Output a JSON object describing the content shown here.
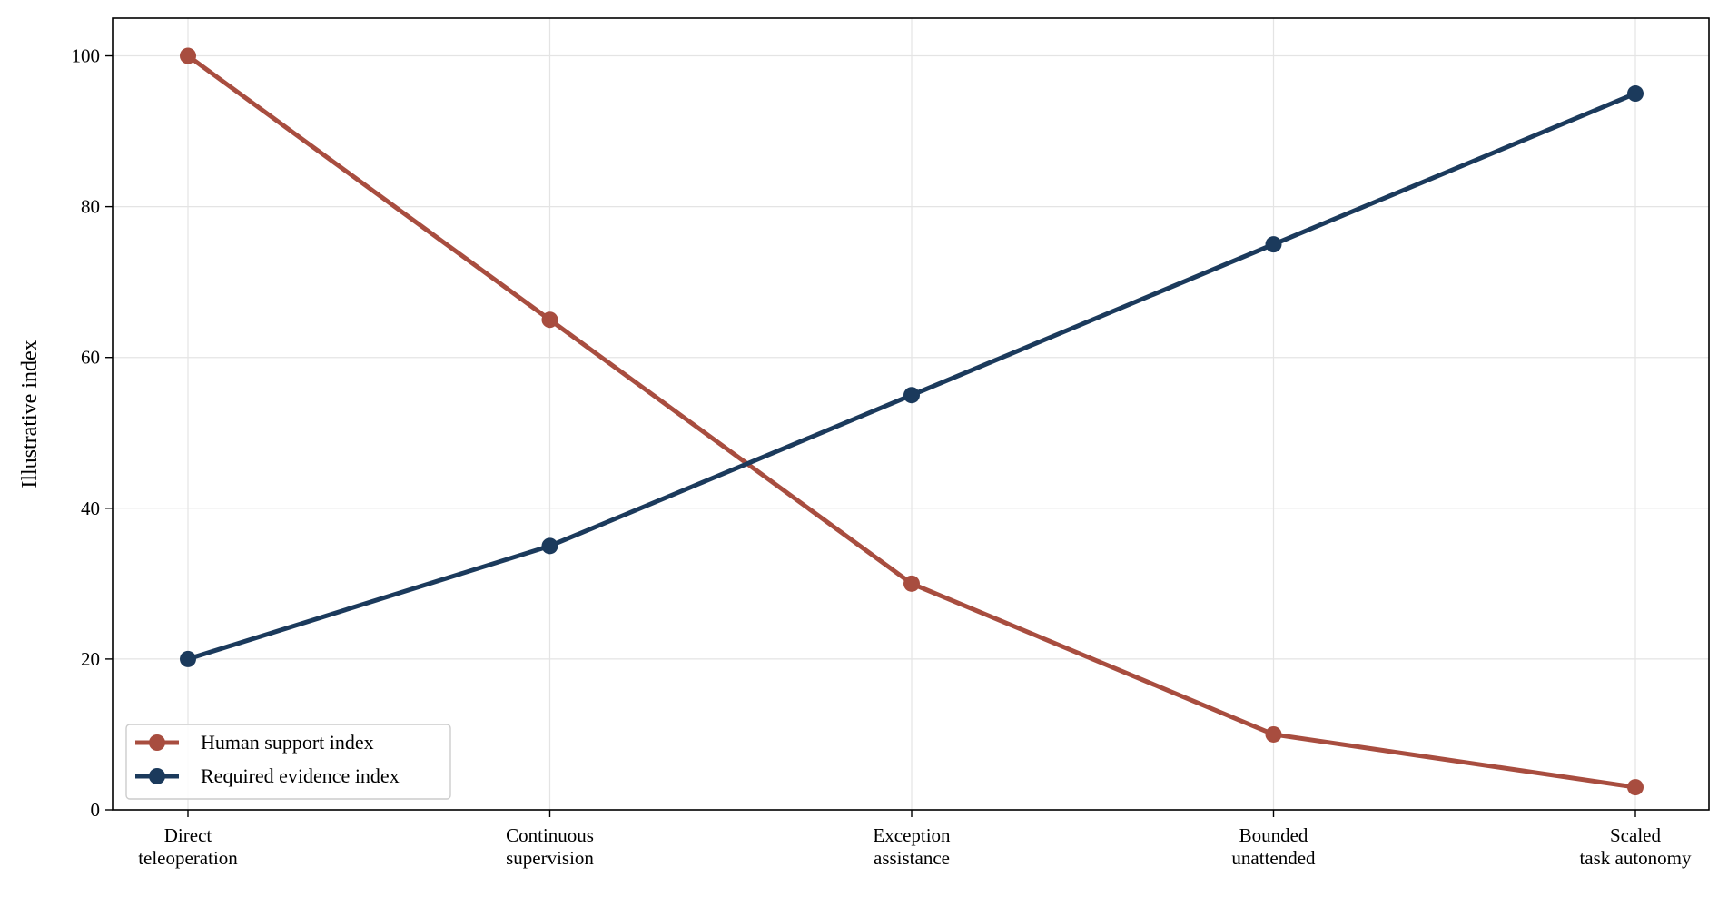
{
  "chart_data": {
    "type": "line",
    "title": "",
    "xlabel": "",
    "ylabel": "Illustrative index",
    "categories": [
      [
        "Direct",
        "teleoperation"
      ],
      [
        "Continuous",
        "supervision"
      ],
      [
        "Exception",
        "assistance"
      ],
      [
        "Bounded",
        "unattended"
      ],
      [
        "Scaled",
        "task autonomy"
      ]
    ],
    "ylim": [
      0,
      105
    ],
    "yticks": [
      "0",
      "20",
      "40",
      "60",
      "80",
      "100"
    ],
    "grid": true,
    "legend_position": "lower-left",
    "series": [
      {
        "name": "Human support index",
        "color": "#a84d3f",
        "values": [
          100,
          65,
          30,
          10,
          3
        ]
      },
      {
        "name": "Required evidence index",
        "color": "#1b3a5c",
        "values": [
          20,
          35,
          55,
          75,
          95
        ]
      }
    ]
  }
}
